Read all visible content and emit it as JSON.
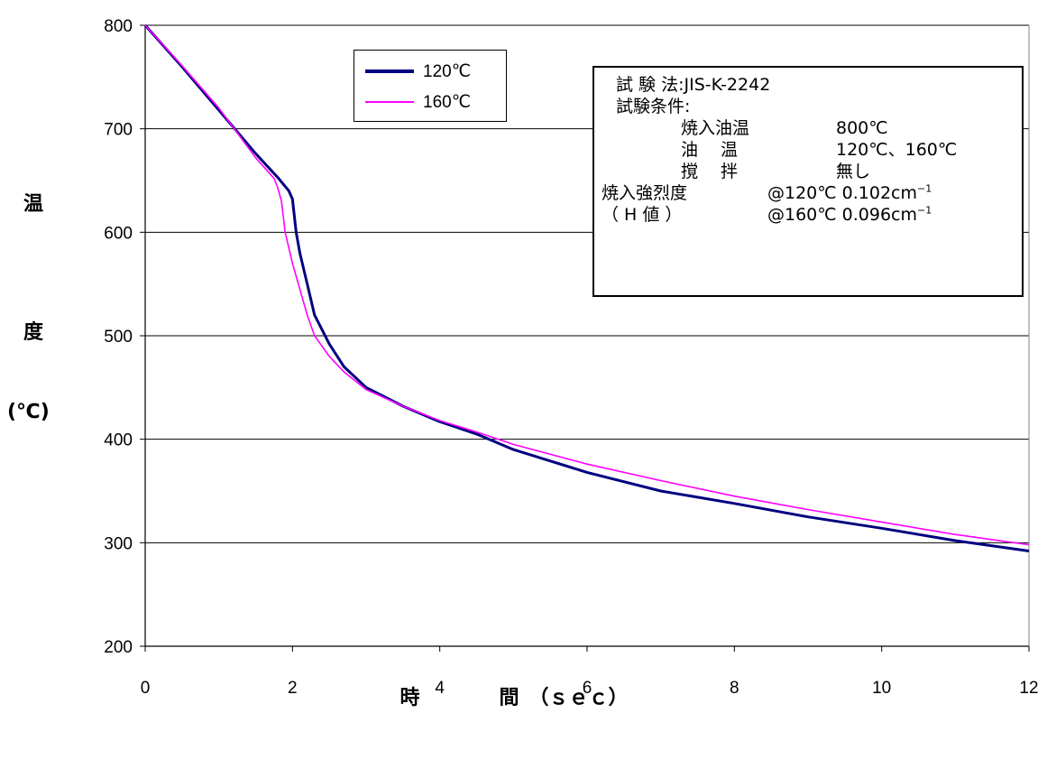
{
  "chart_data": {
    "type": "line",
    "xlim": [
      0,
      12
    ],
    "ylim": [
      200,
      800
    ],
    "x_ticks": [
      "0",
      "2",
      "4",
      "6",
      "8",
      "10",
      "12"
    ],
    "y_ticks": [
      "200",
      "300",
      "400",
      "500",
      "600",
      "700",
      "800"
    ],
    "ylabel_lines": [
      "温",
      "度",
      "(℃)"
    ],
    "xlabel": "時　　　　間　（ｓｅｃ）",
    "grid": "horizontal",
    "legend_position": "top-center",
    "series": [
      {
        "name": "120℃",
        "color": "#000080",
        "x": [
          0,
          0.5,
          1.0,
          1.5,
          1.8,
          1.95,
          2.0,
          2.05,
          2.1,
          2.2,
          2.3,
          2.5,
          2.7,
          3.0,
          3.5,
          4.0,
          4.5,
          5.0,
          6.0,
          7.0,
          8.0,
          9.0,
          10.0,
          11.0,
          12.0
        ],
        "y": [
          800,
          760,
          718,
          676,
          653,
          640,
          632,
          600,
          580,
          550,
          520,
          492,
          470,
          450,
          432,
          417,
          405,
          390,
          368,
          350,
          338,
          325,
          314,
          302,
          292
        ]
      },
      {
        "name": "160℃",
        "color": "#ff00ff",
        "x": [
          0,
          0.5,
          1.0,
          1.5,
          1.75,
          1.8,
          1.85,
          1.9,
          2.0,
          2.1,
          2.2,
          2.3,
          2.5,
          2.7,
          3.0,
          3.5,
          4.0,
          4.5,
          5.0,
          6.0,
          7.0,
          8.0,
          9.0,
          10.0,
          11.0,
          12.0
        ],
        "y": [
          800,
          761,
          720,
          672,
          652,
          643,
          630,
          600,
          570,
          545,
          520,
          500,
          480,
          465,
          448,
          432,
          418,
          407,
          395,
          376,
          360,
          345,
          332,
          320,
          308,
          298
        ]
      }
    ]
  },
  "info_box": {
    "line1": "試 験 法:JIS-K-2242",
    "line2": "試験条件:",
    "line3_label": "焼入油温",
    "line3_value": "800℃",
    "line4_label": "油　 温",
    "line4_value": "120℃、160℃",
    "line5_label": "撹　 拌",
    "line5_value": "無し",
    "line6_label": "焼入強烈度",
    "line6_value": "@120℃ 0.102cm",
    "line6_sup": "−1",
    "line7_label": "（ H 値 ）",
    "line7_value": "@160℃ 0.096cm",
    "line7_sup": "−1"
  }
}
